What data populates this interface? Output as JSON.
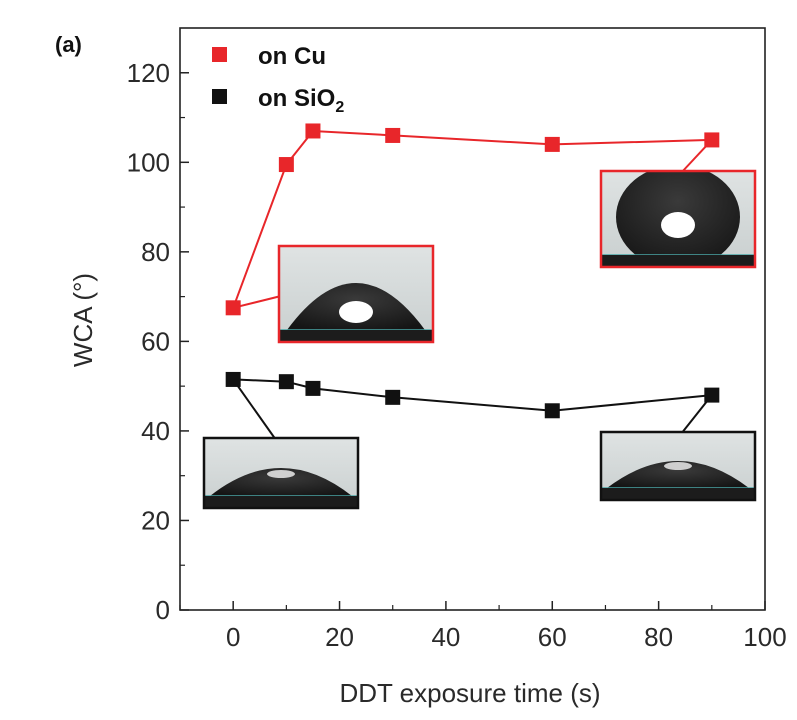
{
  "panel_label": "(a)",
  "colors": {
    "cu": "#e8262a",
    "sio2": "#111111"
  },
  "chart_data": {
    "type": "line",
    "xlabel": "DDT exposure time (s)",
    "ylabel": "WCA (°)",
    "xlim": [
      -10,
      100
    ],
    "ylim": [
      0,
      130
    ],
    "x_ticks": [
      0,
      20,
      40,
      60,
      80,
      100
    ],
    "y_ticks": [
      0,
      20,
      40,
      60,
      80,
      100,
      120
    ],
    "grid": false,
    "legend_position": "top-left",
    "series": [
      {
        "key": "cu",
        "name": "on Cu",
        "color": "#e8262a",
        "x": [
          0,
          10,
          15,
          30,
          60,
          90
        ],
        "y": [
          67.5,
          99.5,
          107,
          106,
          104,
          105
        ]
      },
      {
        "key": "sio2",
        "name": "on SiO",
        "name_sub": "2",
        "color": "#111111",
        "x": [
          0,
          10,
          15,
          30,
          60,
          90
        ],
        "y": [
          51.5,
          51,
          49.5,
          47.5,
          44.5,
          48
        ]
      }
    ],
    "insets": [
      {
        "name": "inset-cu-0s",
        "series": "cu",
        "point_index": 0,
        "shape": "medium"
      },
      {
        "name": "inset-cu-90s",
        "series": "cu",
        "point_index": 5,
        "shape": "tall"
      },
      {
        "name": "inset-sio2-0s",
        "series": "sio2",
        "point_index": 0,
        "shape": "flat"
      },
      {
        "name": "inset-sio2-90s",
        "series": "sio2",
        "point_index": 5,
        "shape": "flat"
      }
    ]
  }
}
